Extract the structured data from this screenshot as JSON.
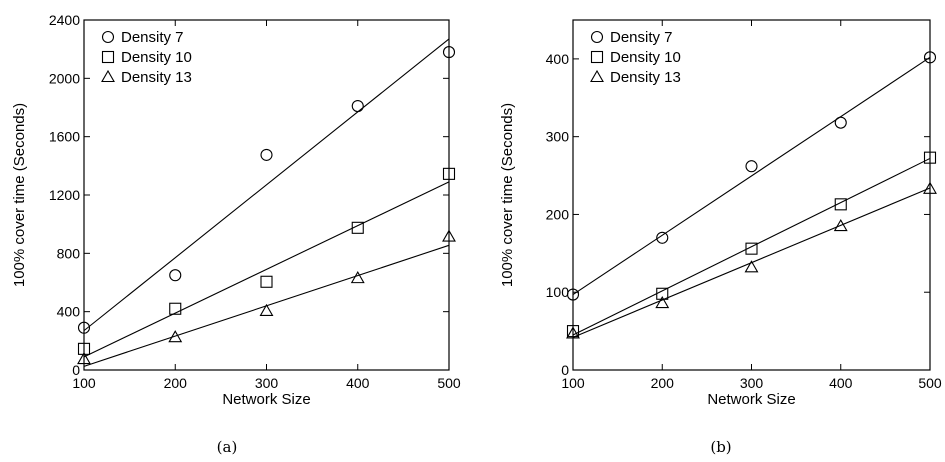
{
  "chart_data": [
    {
      "type": "scatter",
      "panel": "(a)",
      "xlabel": "Network Size",
      "ylabel": "100% cover time (Seconds)",
      "xlim": [
        100,
        500
      ],
      "ylim": [
        0,
        2400
      ],
      "xticks": [
        100,
        200,
        300,
        400,
        500
      ],
      "yticks": [
        0,
        400,
        800,
        1200,
        1600,
        2000,
        2400
      ],
      "grid": false,
      "legend_position": "top-left",
      "series": [
        {
          "name": "Density 7",
          "marker": "circle",
          "x": [
            100,
            200,
            300,
            400,
            500
          ],
          "y": [
            290,
            650,
            1475,
            1810,
            2180
          ],
          "fit": [
            270,
            2270
          ]
        },
        {
          "name": "Density 10",
          "marker": "square",
          "x": [
            100,
            200,
            300,
            400,
            500
          ],
          "y": [
            145,
            420,
            605,
            975,
            1345
          ],
          "fit": [
            90,
            1290
          ]
        },
        {
          "name": "Density 13",
          "marker": "triangle",
          "x": [
            100,
            200,
            300,
            400,
            500
          ],
          "y": [
            75,
            225,
            405,
            630,
            915
          ],
          "fit": [
            25,
            855
          ]
        }
      ]
    },
    {
      "type": "scatter",
      "panel": "(b)",
      "xlabel": "Network Size",
      "ylabel": "100% cover time (Seconds)",
      "xlim": [
        100,
        500
      ],
      "ylim": [
        0,
        450
      ],
      "xticks": [
        100,
        200,
        300,
        400,
        500
      ],
      "yticks": [
        0,
        100,
        200,
        300,
        400
      ],
      "grid": false,
      "legend_position": "top-left",
      "series": [
        {
          "name": "Density 7",
          "marker": "circle",
          "x": [
            100,
            200,
            300,
            400,
            500
          ],
          "y": [
            97,
            170,
            262,
            318,
            402
          ],
          "fit": [
            97,
            402
          ]
        },
        {
          "name": "Density 10",
          "marker": "square",
          "x": [
            100,
            200,
            300,
            400,
            500
          ],
          "y": [
            50,
            98,
            156,
            213,
            273
          ],
          "fit": [
            45,
            272
          ]
        },
        {
          "name": "Density 13",
          "marker": "triangle",
          "x": [
            100,
            200,
            300,
            400,
            500
          ],
          "y": [
            47,
            86,
            132,
            185,
            233
          ],
          "fit": [
            42,
            234
          ]
        }
      ]
    }
  ]
}
